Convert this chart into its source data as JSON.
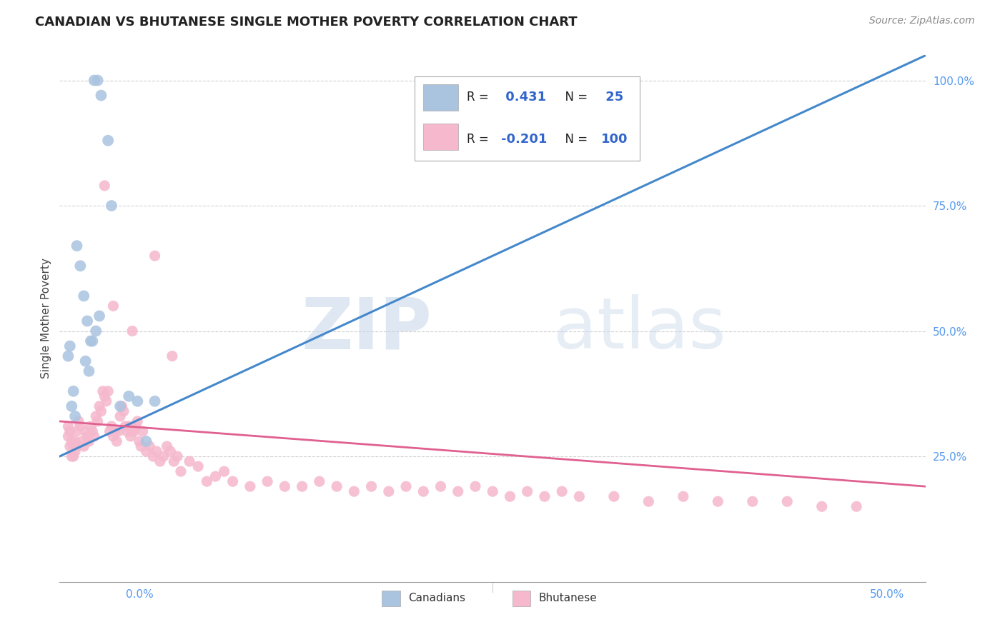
{
  "title": "CANADIAN VS BHUTANESE SINGLE MOTHER POVERTY CORRELATION CHART",
  "source": "Source: ZipAtlas.com",
  "ylabel": "Single Mother Poverty",
  "legend_label_ca": "Canadians",
  "legend_label_bh": "Bhutanese",
  "r_ca": 0.431,
  "n_ca": 25,
  "r_bh": -0.201,
  "n_bh": 100,
  "ca_color": "#aac4e0",
  "bh_color": "#f5b8cc",
  "ca_line_color": "#4488cc",
  "bh_line_color": "#e06090",
  "ca_points_x": [
    0.02,
    0.022,
    0.024,
    0.028,
    0.03,
    0.01,
    0.012,
    0.014,
    0.016,
    0.018,
    0.005,
    0.006,
    0.007,
    0.008,
    0.009,
    0.035,
    0.04,
    0.045,
    0.05,
    0.055,
    0.015,
    0.017,
    0.019,
    0.021,
    0.023
  ],
  "ca_points_y": [
    1.0,
    1.0,
    0.97,
    0.88,
    0.75,
    0.67,
    0.63,
    0.57,
    0.52,
    0.48,
    0.45,
    0.47,
    0.35,
    0.38,
    0.33,
    0.35,
    0.37,
    0.36,
    0.28,
    0.36,
    0.44,
    0.42,
    0.48,
    0.5,
    0.53
  ],
  "bh_points_x": [
    0.005,
    0.005,
    0.006,
    0.006,
    0.007,
    0.007,
    0.008,
    0.008,
    0.009,
    0.009,
    0.01,
    0.01,
    0.011,
    0.012,
    0.013,
    0.014,
    0.015,
    0.016,
    0.017,
    0.018,
    0.019,
    0.02,
    0.021,
    0.022,
    0.023,
    0.024,
    0.025,
    0.026,
    0.027,
    0.028,
    0.029,
    0.03,
    0.031,
    0.032,
    0.033,
    0.034,
    0.035,
    0.036,
    0.037,
    0.038,
    0.039,
    0.04,
    0.041,
    0.042,
    0.043,
    0.044,
    0.045,
    0.046,
    0.047,
    0.048,
    0.05,
    0.052,
    0.054,
    0.056,
    0.058,
    0.06,
    0.062,
    0.064,
    0.066,
    0.068,
    0.07,
    0.075,
    0.08,
    0.085,
    0.09,
    0.095,
    0.1,
    0.11,
    0.12,
    0.13,
    0.14,
    0.15,
    0.16,
    0.17,
    0.18,
    0.19,
    0.2,
    0.21,
    0.22,
    0.23,
    0.24,
    0.25,
    0.26,
    0.27,
    0.28,
    0.29,
    0.3,
    0.32,
    0.34,
    0.36,
    0.38,
    0.4,
    0.42,
    0.44,
    0.46,
    0.026,
    0.031,
    0.042,
    0.055,
    0.065
  ],
  "bh_points_y": [
    0.29,
    0.31,
    0.27,
    0.3,
    0.25,
    0.28,
    0.27,
    0.25,
    0.28,
    0.26,
    0.3,
    0.27,
    0.32,
    0.31,
    0.28,
    0.27,
    0.3,
    0.29,
    0.28,
    0.31,
    0.3,
    0.29,
    0.33,
    0.32,
    0.35,
    0.34,
    0.38,
    0.37,
    0.36,
    0.38,
    0.3,
    0.31,
    0.29,
    0.3,
    0.28,
    0.3,
    0.33,
    0.35,
    0.34,
    0.31,
    0.3,
    0.31,
    0.29,
    0.3,
    0.3,
    0.31,
    0.32,
    0.28,
    0.27,
    0.3,
    0.26,
    0.27,
    0.25,
    0.26,
    0.24,
    0.25,
    0.27,
    0.26,
    0.24,
    0.25,
    0.22,
    0.24,
    0.23,
    0.2,
    0.21,
    0.22,
    0.2,
    0.19,
    0.2,
    0.19,
    0.19,
    0.2,
    0.19,
    0.18,
    0.19,
    0.18,
    0.19,
    0.18,
    0.19,
    0.18,
    0.19,
    0.18,
    0.17,
    0.18,
    0.17,
    0.18,
    0.17,
    0.17,
    0.16,
    0.17,
    0.16,
    0.16,
    0.16,
    0.15,
    0.15,
    0.79,
    0.55,
    0.5,
    0.65,
    0.45
  ],
  "xlim": [
    0.0,
    0.5
  ],
  "ylim": [
    0.0,
    1.05
  ],
  "yticks": [
    0.25,
    0.5,
    0.75,
    1.0
  ],
  "ytick_labels": [
    "25.0%",
    "50.0%",
    "75.0%",
    "100.0%"
  ],
  "xtick_labels": [
    "0.0%",
    "50.0%"
  ],
  "xtick_positions": [
    0.0,
    0.5
  ],
  "ca_line_x": [
    0.0,
    0.5
  ],
  "ca_line_y": [
    0.25,
    1.05
  ],
  "bh_line_x": [
    0.0,
    0.5
  ],
  "bh_line_y": [
    0.32,
    0.19
  ],
  "watermark_part1": "ZIP",
  "watermark_part2": "atlas",
  "background_color": "#ffffff",
  "grid_color": "#cccccc",
  "title_fontsize": 13,
  "source_fontsize": 10,
  "legend_r_color": "#3366cc",
  "legend_n_color": "#3366cc"
}
